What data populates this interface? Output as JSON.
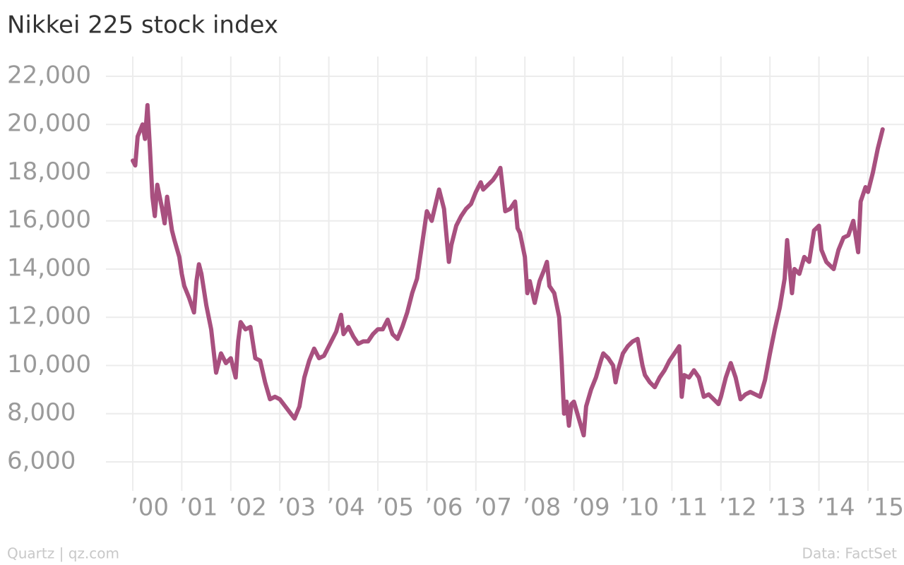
{
  "chart_data": {
    "type": "line",
    "title": "Nikkei 225 stock index",
    "source": "Data: FactSet",
    "credit": "Quartz | qz.com",
    "xlim": [
      2000,
      2015.3
    ],
    "ylim": [
      5000,
      22000
    ],
    "xticks": [
      {
        "value": 2000,
        "label": "’00"
      },
      {
        "value": 2001,
        "label": "’01"
      },
      {
        "value": 2002,
        "label": "’02"
      },
      {
        "value": 2003,
        "label": "’03"
      },
      {
        "value": 2004,
        "label": "’04"
      },
      {
        "value": 2005,
        "label": "’05"
      },
      {
        "value": 2006,
        "label": "’06"
      },
      {
        "value": 2007,
        "label": "’07"
      },
      {
        "value": 2008,
        "label": "’08"
      },
      {
        "value": 2009,
        "label": "’09"
      },
      {
        "value": 2010,
        "label": "’10"
      },
      {
        "value": 2011,
        "label": "’11"
      },
      {
        "value": 2012,
        "label": "’12"
      },
      {
        "value": 2013,
        "label": "’13"
      },
      {
        "value": 2014,
        "label": "’14"
      },
      {
        "value": 2015,
        "label": "’15"
      }
    ],
    "yticks": [
      {
        "value": 6000,
        "label": "6,000"
      },
      {
        "value": 8000,
        "label": "8,000"
      },
      {
        "value": 10000,
        "label": "10,000"
      },
      {
        "value": 12000,
        "label": "12,000"
      },
      {
        "value": 14000,
        "label": "14,000"
      },
      {
        "value": 16000,
        "label": "16,000"
      },
      {
        "value": 18000,
        "label": "18,000"
      },
      {
        "value": 20000,
        "label": "20,000"
      },
      {
        "value": 22000,
        "label": "22,000"
      }
    ],
    "grid": true,
    "color": "#a8507f",
    "x": [
      2000.0,
      2000.05,
      2000.1,
      2000.2,
      2000.25,
      2000.3,
      2000.35,
      2000.4,
      2000.45,
      2000.5,
      2000.6,
      2000.65,
      2000.7,
      2000.8,
      2000.85,
      2000.95,
      2001.0,
      2001.05,
      2001.15,
      2001.25,
      2001.3,
      2001.35,
      2001.4,
      2001.5,
      2001.6,
      2001.7,
      2001.8,
      2001.9,
      2002.0,
      2002.1,
      2002.15,
      2002.2,
      2002.3,
      2002.4,
      2002.5,
      2002.6,
      2002.7,
      2002.8,
      2002.9,
      2003.0,
      2003.15,
      2003.3,
      2003.4,
      2003.5,
      2003.6,
      2003.7,
      2003.8,
      2003.9,
      2004.0,
      2004.15,
      2004.25,
      2004.3,
      2004.4,
      2004.5,
      2004.6,
      2004.7,
      2004.8,
      2004.9,
      2005.0,
      2005.1,
      2005.2,
      2005.3,
      2005.4,
      2005.5,
      2005.6,
      2005.7,
      2005.8,
      2005.9,
      2006.0,
      2006.1,
      2006.25,
      2006.35,
      2006.45,
      2006.5,
      2006.6,
      2006.7,
      2006.8,
      2006.9,
      2007.0,
      2007.1,
      2007.15,
      2007.25,
      2007.35,
      2007.45,
      2007.5,
      2007.55,
      2007.6,
      2007.7,
      2007.8,
      2007.85,
      2007.9,
      2008.0,
      2008.05,
      2008.1,
      2008.2,
      2008.3,
      2008.4,
      2008.45,
      2008.5,
      2008.6,
      2008.7,
      2008.75,
      2008.8,
      2008.85,
      2008.9,
      2008.95,
      2009.0,
      2009.1,
      2009.2,
      2009.25,
      2009.35,
      2009.45,
      2009.55,
      2009.6,
      2009.7,
      2009.8,
      2009.85,
      2009.9,
      2010.0,
      2010.1,
      2010.2,
      2010.3,
      2010.4,
      2010.45,
      2010.55,
      2010.65,
      2010.75,
      2010.85,
      2010.95,
      2011.05,
      2011.15,
      2011.2,
      2011.25,
      2011.35,
      2011.45,
      2011.55,
      2011.65,
      2011.75,
      2011.85,
      2011.95,
      2012.0,
      2012.1,
      2012.2,
      2012.3,
      2012.4,
      2012.5,
      2012.6,
      2012.7,
      2012.8,
      2012.9,
      2013.0,
      2013.1,
      2013.2,
      2013.3,
      2013.35,
      2013.45,
      2013.5,
      2013.6,
      2013.7,
      2013.8,
      2013.9,
      2014.0,
      2014.05,
      2014.15,
      2014.3,
      2014.4,
      2014.5,
      2014.6,
      2014.7,
      2014.8,
      2014.85,
      2014.95,
      2015.0,
      2015.1,
      2015.2,
      2015.3
    ],
    "values": [
      18500,
      18300,
      19500,
      20000,
      19400,
      20800,
      19000,
      17000,
      16200,
      17500,
      16500,
      15900,
      17000,
      15600,
      15200,
      14500,
      13800,
      13300,
      12800,
      12200,
      13500,
      14200,
      13800,
      12500,
      11500,
      9700,
      10500,
      10100,
      10300,
      9500,
      11000,
      11800,
      11500,
      11600,
      10300,
      10200,
      9300,
      8600,
      8700,
      8600,
      8200,
      7800,
      8300,
      9500,
      10200,
      10700,
      10300,
      10400,
      10800,
      11400,
      12100,
      11300,
      11600,
      11200,
      10900,
      11000,
      11000,
      11300,
      11500,
      11500,
      11900,
      11300,
      11100,
      11600,
      12200,
      13000,
      13600,
      15000,
      16400,
      16000,
      17300,
      16500,
      14300,
      15000,
      15800,
      16200,
      16500,
      16700,
      17200,
      17600,
      17300,
      17500,
      17700,
      18000,
      18200,
      17300,
      16400,
      16500,
      16800,
      15700,
      15500,
      14500,
      13000,
      13500,
      12600,
      13500,
      14000,
      14300,
      13300,
      13000,
      12000,
      10200,
      8000,
      8500,
      7500,
      8400,
      8500,
      7800,
      7100,
      8300,
      9000,
      9500,
      10200,
      10500,
      10300,
      10000,
      9300,
      9800,
      10500,
      10800,
      11000,
      11100,
      10000,
      9600,
      9300,
      9100,
      9500,
      9800,
      10200,
      10500,
      10800,
      8700,
      9600,
      9500,
      9800,
      9500,
      8700,
      8800,
      8600,
      8400,
      8700,
      9500,
      10100,
      9500,
      8600,
      8800,
      8900,
      8800,
      8700,
      9400,
      10500,
      11500,
      12400,
      13600,
      15200,
      13000,
      14000,
      13800,
      14500,
      14300,
      15600,
      15800,
      14800,
      14300,
      14000,
      14800,
      15300,
      15400,
      16000,
      14700,
      16800,
      17400,
      17200,
      18000,
      19000,
      19800
    ]
  }
}
